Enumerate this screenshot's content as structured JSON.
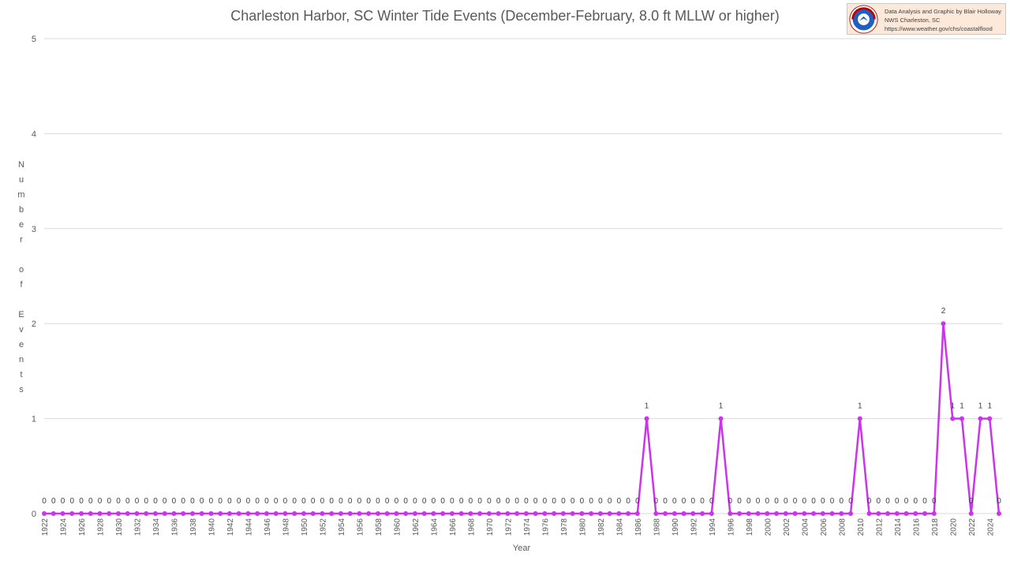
{
  "title": "Charleston Harbor, SC Winter Tide Events (December-February, 8.0 ft MLLW or higher)",
  "credit": {
    "line1": "Data Analysis and Graphic by Blair Holloway",
    "line2": "NWS Charleston, SC",
    "line3": "https://www.weather.gov/chs/coastalflood",
    "logo_text": "NATIONAL WEATHER SERVICE"
  },
  "colors": {
    "series": "#cc33ee",
    "grid": "#d9d9d9",
    "text": "#595959",
    "credit_bg": "#fde9d9"
  },
  "chart_data": {
    "type": "line",
    "title": "Charleston Harbor, SC Winter Tide Events (December-February, 8.0 ft MLLW or higher)",
    "xlabel": "Year",
    "ylabel": "Number of Events",
    "ylim": [
      0,
      5
    ],
    "yticks": [
      0,
      1,
      2,
      3,
      4,
      5
    ],
    "grid": true,
    "data_labels": true,
    "x_start": 1922,
    "x_end": 2025,
    "xtick_labels": [
      "1922",
      "1924",
      "1926",
      "1928",
      "1930",
      "1932",
      "1934",
      "1936",
      "1938",
      "1940",
      "1942",
      "1944",
      "1946",
      "1948",
      "1950",
      "1952",
      "1954",
      "1956",
      "1958",
      "1960",
      "1962",
      "1964",
      "1966",
      "1968",
      "1970",
      "1972",
      "1974",
      "1976",
      "1978",
      "1980",
      "1982",
      "1984",
      "1986",
      "1988",
      "1990",
      "1992",
      "1994",
      "1996",
      "1998",
      "2000",
      "2002",
      "2004",
      "2006",
      "2008",
      "2010",
      "2012",
      "2014",
      "2016",
      "2018",
      "2020",
      "2022",
      "2024"
    ],
    "x": [
      1922,
      1923,
      1924,
      1925,
      1926,
      1927,
      1928,
      1929,
      1930,
      1931,
      1932,
      1933,
      1934,
      1935,
      1936,
      1937,
      1938,
      1939,
      1940,
      1941,
      1942,
      1943,
      1944,
      1945,
      1946,
      1947,
      1948,
      1949,
      1950,
      1951,
      1952,
      1953,
      1954,
      1955,
      1956,
      1957,
      1958,
      1959,
      1960,
      1961,
      1962,
      1963,
      1964,
      1965,
      1966,
      1967,
      1968,
      1969,
      1970,
      1971,
      1972,
      1973,
      1974,
      1975,
      1976,
      1977,
      1978,
      1979,
      1980,
      1981,
      1982,
      1983,
      1984,
      1985,
      1986,
      1987,
      1988,
      1989,
      1990,
      1991,
      1992,
      1993,
      1994,
      1995,
      1996,
      1997,
      1998,
      1999,
      2000,
      2001,
      2002,
      2003,
      2004,
      2005,
      2006,
      2007,
      2008,
      2009,
      2010,
      2011,
      2012,
      2013,
      2014,
      2015,
      2016,
      2017,
      2018,
      2019,
      2020,
      2021,
      2022,
      2023,
      2024,
      2025
    ],
    "values": [
      0,
      0,
      0,
      0,
      0,
      0,
      0,
      0,
      0,
      0,
      0,
      0,
      0,
      0,
      0,
      0,
      0,
      0,
      0,
      0,
      0,
      0,
      0,
      0,
      0,
      0,
      0,
      0,
      0,
      0,
      0,
      0,
      0,
      0,
      0,
      0,
      0,
      0,
      0,
      0,
      0,
      0,
      0,
      0,
      0,
      0,
      0,
      0,
      0,
      0,
      0,
      0,
      0,
      0,
      0,
      0,
      0,
      0,
      0,
      0,
      0,
      0,
      0,
      0,
      0,
      1,
      0,
      0,
      0,
      0,
      0,
      0,
      0,
      1,
      0,
      0,
      0,
      0,
      0,
      0,
      0,
      0,
      0,
      0,
      0,
      0,
      0,
      0,
      1,
      0,
      0,
      0,
      0,
      0,
      0,
      0,
      0,
      2,
      1,
      1,
      0,
      1,
      1,
      0
    ]
  }
}
